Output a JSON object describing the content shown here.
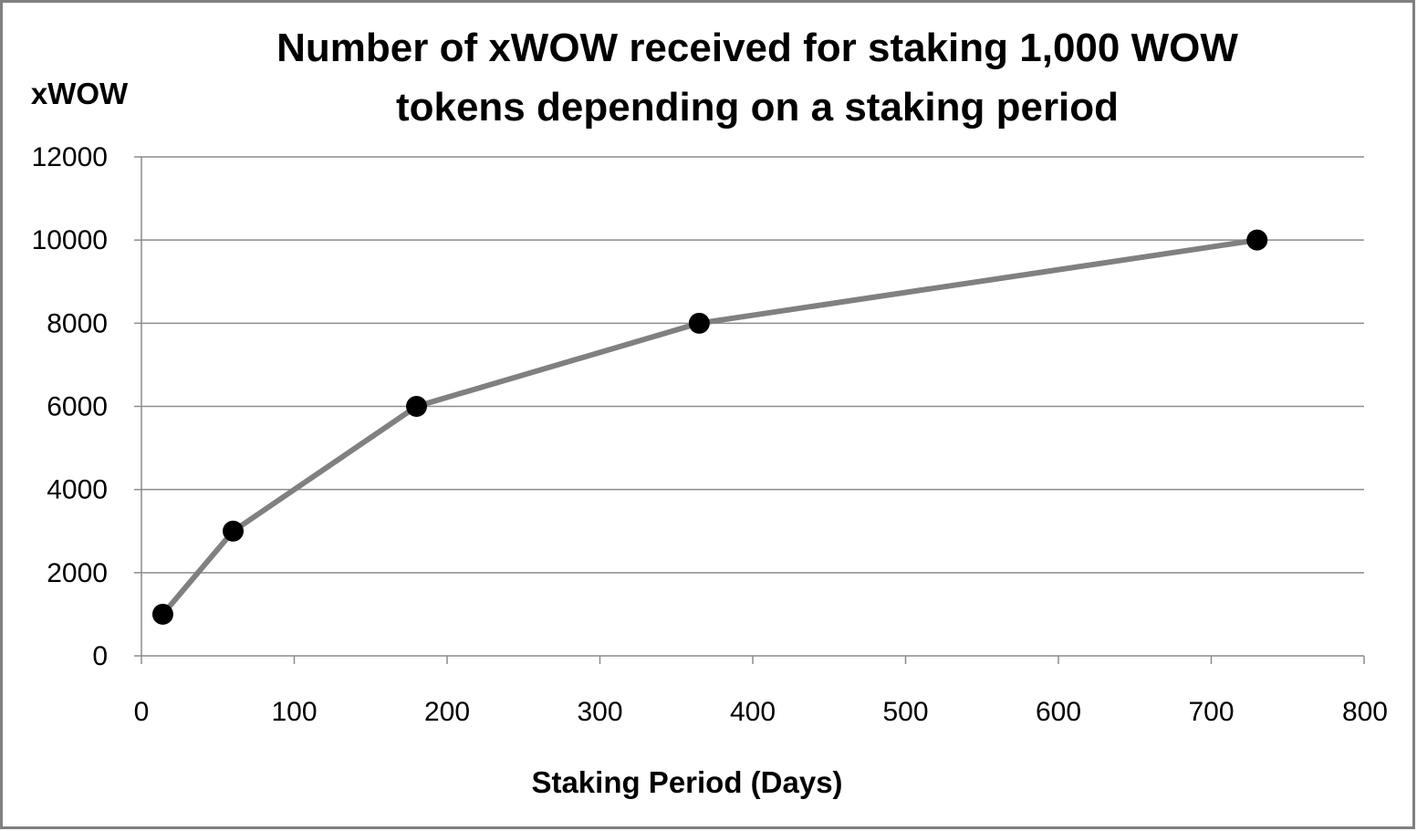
{
  "chart_data": {
    "type": "line",
    "title_lines": [
      "Number of xWOW received for staking 1,000 WOW",
      "tokens depending on a staking period"
    ],
    "xlabel": "Staking Period (Days)",
    "ylabel": "xWOW",
    "xlim": [
      0,
      800
    ],
    "ylim": [
      0,
      12000
    ],
    "x_ticks": [
      0,
      100,
      200,
      300,
      400,
      500,
      600,
      700,
      800
    ],
    "y_ticks": [
      0,
      2000,
      4000,
      6000,
      8000,
      10000,
      12000
    ],
    "grid": "horizontal",
    "legend": "none",
    "series": [
      {
        "x": [
          14,
          60,
          180,
          365,
          730
        ],
        "y": [
          1000,
          3000,
          6000,
          8000,
          10000
        ],
        "line_color": "#808080",
        "marker_color": "#000000"
      }
    ]
  },
  "colors": {
    "background": "#ffffff",
    "frame": "#808080",
    "gridline": "#8c8c8c",
    "axis": "#8c8c8c"
  }
}
